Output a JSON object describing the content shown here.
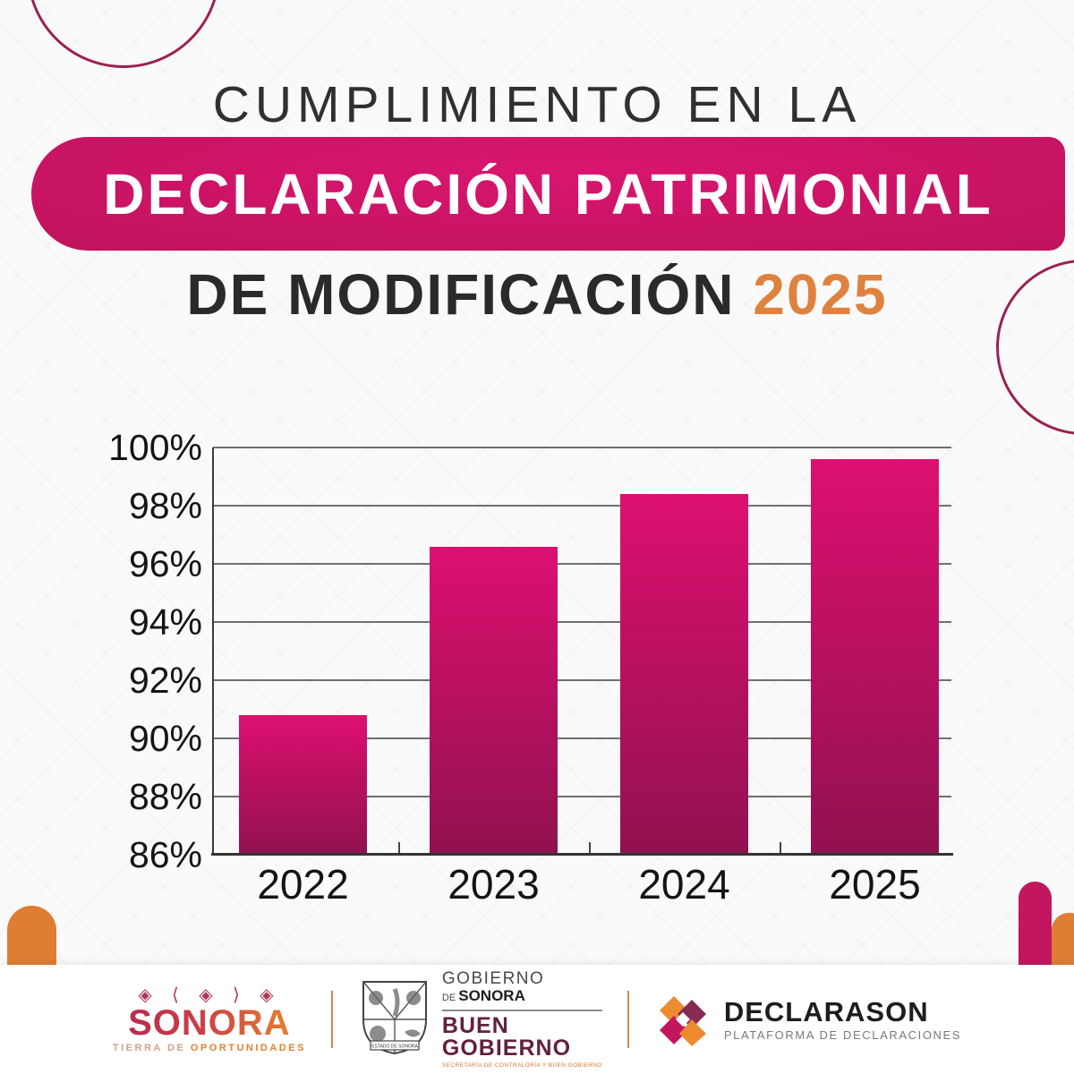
{
  "header": {
    "title_line1": "CUMPLIMIENTO EN LA",
    "banner_text": "DECLARACIÓN PATRIMONIAL",
    "title3_prefix": "DE MODIFICACIÓN ",
    "title3_year": "2025"
  },
  "chart_data": {
    "type": "bar",
    "categories": [
      "2022",
      "2023",
      "2024",
      "2025"
    ],
    "values": [
      90.8,
      96.6,
      98.4,
      99.6
    ],
    "title": "Cumplimiento en la Declaración Patrimonial de Modificación 2025",
    "xlabel": "",
    "ylabel": "",
    "ylim": [
      86,
      100
    ],
    "ytick_step": 2,
    "ytick_labels": [
      "100%",
      "98%",
      "96%",
      "94%",
      "92%",
      "90%",
      "88%",
      "86%"
    ],
    "grid": true,
    "legend": false
  },
  "colors": {
    "magenta_banner_bright": "#d91570",
    "magenta_banner_mid": "#c3145f",
    "magenta_banner_dark": "#9f1a55",
    "bar_top": "#dd1070",
    "bar_bottom": "#911150",
    "orange": "#e0823f",
    "orange_capsule": "#df7d35",
    "magenta_capsule": "#c2175f",
    "circle_stroke": "#9b2153"
  },
  "footer": {
    "sonora": {
      "glyphs": "◈ ⟨ ◈ ⟩ ◈",
      "name": "SONORA",
      "tagline_light": "TIERRA DE ",
      "tagline_bold": "OPORTUNIDADES"
    },
    "gobierno": {
      "line1": "GOBIERNO",
      "line2_small": "DE ",
      "line2_bold": "SONORA",
      "line3": "BUEN",
      "line4": "GOBIERNO",
      "small_text": "SECRETARÍA DE CONTRALORÍA Y BUEN GOBIERNO",
      "shield_caption": "ESTADO DE SONORA"
    },
    "declarason": {
      "name": "DECLARASON",
      "tagline": "PLATAFORMA DE DECLARACIONES"
    }
  }
}
